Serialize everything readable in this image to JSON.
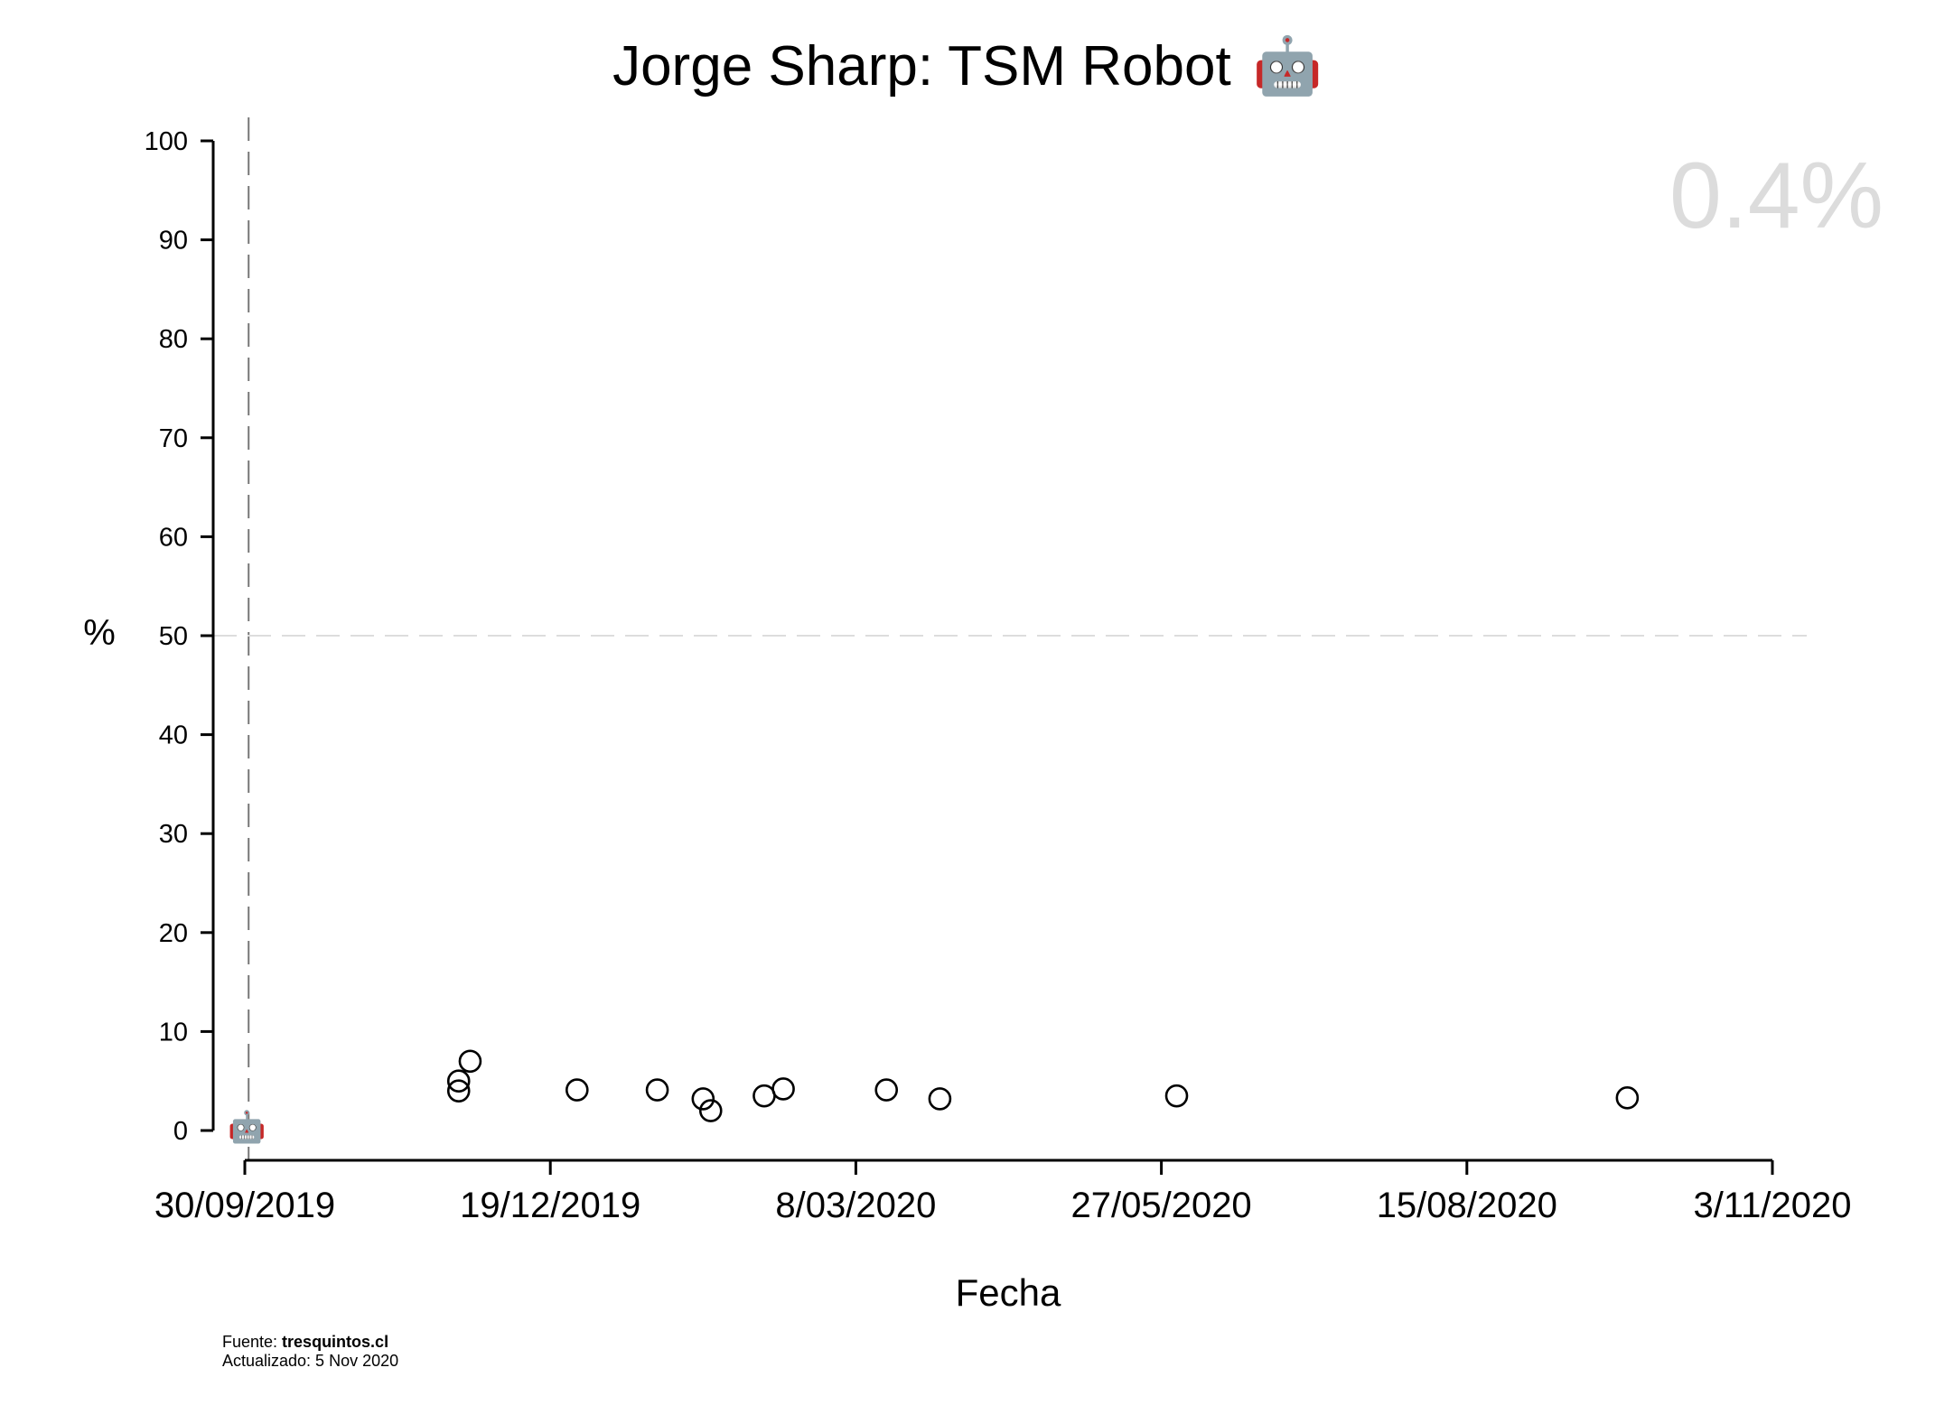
{
  "chart_data": {
    "type": "scatter",
    "title": "Jorge Sharp: TSM Robot",
    "title_emoji": "🤖",
    "xlabel": "Fecha",
    "ylabel": "%",
    "ylim": [
      0,
      100
    ],
    "yticks": [
      0,
      10,
      20,
      30,
      40,
      50,
      60,
      70,
      80,
      90,
      100
    ],
    "xlim": [
      "2019-09-30",
      "2020-11-03"
    ],
    "xticks": [
      {
        "date": "2019-09-30",
        "label": "30/09/2019"
      },
      {
        "date": "2019-12-19",
        "label": "19/12/2019"
      },
      {
        "date": "2020-03-08",
        "label": "8/03/2020"
      },
      {
        "date": "2020-05-27",
        "label": "27/05/2020"
      },
      {
        "date": "2020-08-15",
        "label": "15/08/2020"
      },
      {
        "date": "2020-11-03",
        "label": "3/11/2020"
      }
    ],
    "reference_lines": [
      {
        "axis": "x",
        "date": "2019-10-01",
        "style": "dashed",
        "color": "#777777"
      },
      {
        "axis": "y",
        "value": 50,
        "style": "dashed",
        "color": "#dddddd"
      }
    ],
    "points": [
      {
        "date": "2019-11-25",
        "value": 5.0
      },
      {
        "date": "2019-11-25",
        "value": 4.0
      },
      {
        "date": "2019-11-28",
        "value": 7.0
      },
      {
        "date": "2019-12-26",
        "value": 4.1
      },
      {
        "date": "2020-01-16",
        "value": 4.1
      },
      {
        "date": "2020-01-28",
        "value": 3.2
      },
      {
        "date": "2020-01-30",
        "value": 2.0
      },
      {
        "date": "2020-02-13",
        "value": 3.5
      },
      {
        "date": "2020-02-18",
        "value": 4.2
      },
      {
        "date": "2020-03-16",
        "value": 4.1
      },
      {
        "date": "2020-03-30",
        "value": 3.2
      },
      {
        "date": "2020-05-31",
        "value": 3.5
      },
      {
        "date": "2020-09-26",
        "value": 3.3
      }
    ],
    "marker": {
      "date": "2019-10-01",
      "value": 0.4,
      "emoji": "🤖"
    },
    "current_value_label": "0.4%",
    "grid": false
  },
  "footer": {
    "source_prefix": "Fuente: ",
    "source_name": "tresquintos.cl",
    "updated": "Actualizado: 5 Nov 2020"
  }
}
